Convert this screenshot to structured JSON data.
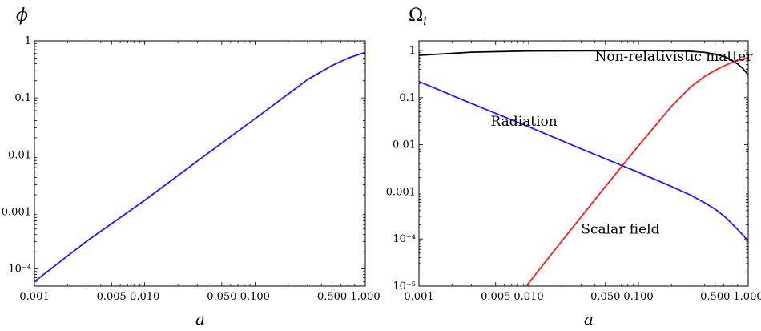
{
  "chart_data": [
    {
      "type": "line",
      "ylabel": "ϕ",
      "xlabel": "a",
      "xscale": "log",
      "yscale": "log",
      "xlim": [
        0.001,
        1.0
      ],
      "ylim": [
        5e-05,
        1
      ],
      "x_ticks": [
        {
          "value": 0.001,
          "label": "0.001"
        },
        {
          "value": 0.005,
          "label": "0.005"
        },
        {
          "value": 0.01,
          "label": "0.010"
        },
        {
          "value": 0.05,
          "label": "0.050"
        },
        {
          "value": 0.1,
          "label": "0.100"
        },
        {
          "value": 0.5,
          "label": "0.500"
        },
        {
          "value": 1.0,
          "label": "1.000"
        }
      ],
      "y_ticks": [
        {
          "value": 0.0001,
          "label": "10⁻⁴"
        },
        {
          "value": 0.001,
          "label": "0.001"
        },
        {
          "value": 0.01,
          "label": "0.01"
        },
        {
          "value": 0.1,
          "label": "0.1"
        },
        {
          "value": 1,
          "label": "1"
        }
      ],
      "series": [
        {
          "color": "#1a1aff",
          "x": [
            0.001,
            0.003,
            0.01,
            0.03,
            0.1,
            0.3,
            0.5,
            0.7,
            1.0
          ],
          "y": [
            6e-05,
            0.00031,
            0.0016,
            0.0078,
            0.043,
            0.21,
            0.37,
            0.5,
            0.63
          ]
        }
      ]
    },
    {
      "type": "line",
      "ylabel": "Ω",
      "ylabel_sub": "i",
      "xlabel": "a",
      "xscale": "log",
      "yscale": "log",
      "xlim": [
        0.001,
        1.0
      ],
      "ylim": [
        1e-05,
        1.6
      ],
      "x_ticks": [
        {
          "value": 0.001,
          "label": "0.001"
        },
        {
          "value": 0.005,
          "label": "0.005"
        },
        {
          "value": 0.01,
          "label": "0.010"
        },
        {
          "value": 0.05,
          "label": "0.050"
        },
        {
          "value": 0.1,
          "label": "0.100"
        },
        {
          "value": 0.5,
          "label": "0.500"
        },
        {
          "value": 1.0,
          "label": "1.000"
        }
      ],
      "y_ticks": [
        {
          "value": 1e-05,
          "label": "10⁻⁵"
        },
        {
          "value": 0.0001,
          "label": "10⁻⁴"
        },
        {
          "value": 0.001,
          "label": "0.001"
        },
        {
          "value": 0.01,
          "label": "0.01"
        },
        {
          "value": 0.1,
          "label": "0.1"
        },
        {
          "value": 1,
          "label": "1"
        }
      ],
      "annotations": [
        {
          "text": "Non-relativistic matter",
          "x": 0.04,
          "y": 0.6
        },
        {
          "text": "Radiation",
          "x": 0.0045,
          "y": 0.025
        },
        {
          "text": "Scalar field",
          "x": 0.03,
          "y": 0.00013
        }
      ],
      "series": [
        {
          "color": "#000000",
          "x": [
            0.001,
            0.003,
            0.01,
            0.03,
            0.1,
            0.2,
            0.3,
            0.4,
            0.5,
            0.6,
            0.7,
            0.8,
            0.9,
            1.0
          ],
          "y": [
            0.79,
            0.92,
            0.975,
            0.99,
            0.995,
            0.985,
            0.96,
            0.91,
            0.84,
            0.75,
            0.63,
            0.52,
            0.41,
            0.3
          ]
        },
        {
          "color": "#1a1aff",
          "x": [
            0.001,
            0.003,
            0.01,
            0.03,
            0.1,
            0.2,
            0.3,
            0.4,
            0.5,
            0.6,
            0.7,
            0.8,
            0.9,
            1.0
          ],
          "y": [
            0.22,
            0.075,
            0.024,
            0.0082,
            0.0026,
            0.0013,
            0.00085,
            0.00059,
            0.00043,
            0.00031,
            0.00022,
            0.00016,
            0.00012,
            9e-05
          ]
        },
        {
          "color": "#ff1a1a",
          "x": [
            0.0095,
            0.02,
            0.05,
            0.1,
            0.2,
            0.3,
            0.4,
            0.5,
            0.6,
            0.7,
            0.8,
            0.9,
            1.0
          ],
          "y": [
            1e-05,
            9e-05,
            0.0013,
            0.0095,
            0.065,
            0.17,
            0.28,
            0.38,
            0.47,
            0.55,
            0.61,
            0.66,
            0.7
          ]
        }
      ]
    }
  ]
}
